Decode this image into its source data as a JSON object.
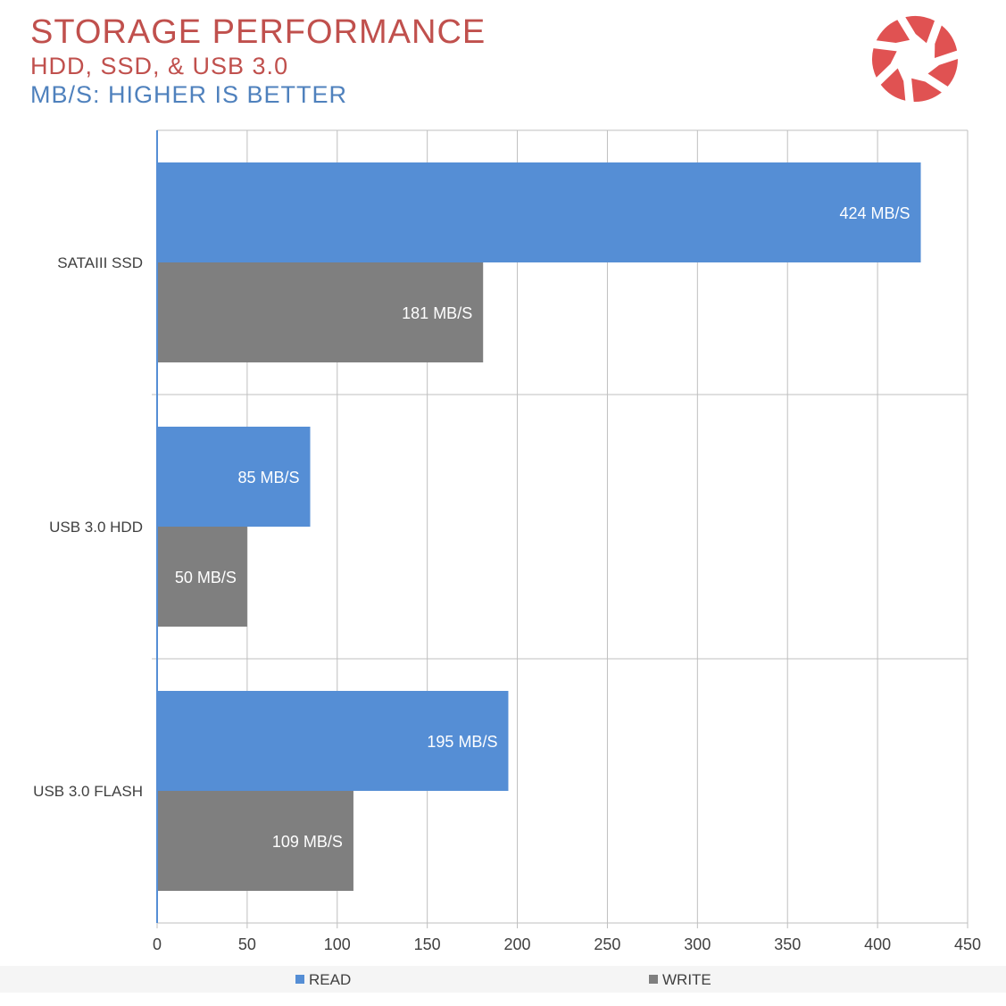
{
  "header": {
    "title": "STORAGE PERFORMANCE",
    "subtitle_line1": "HDD, SSD, & USB 3.0",
    "subtitle_line2": "MB/S: HIGHER IS BETTER"
  },
  "colors": {
    "title": "#c0504d",
    "subtitle_accent": "#4f81bd",
    "read": "#558ed5",
    "write": "#7f7f7f",
    "grid": "#bfbfbf",
    "axis": "#558ed5",
    "logo": "#e05252"
  },
  "logo": {
    "icon": "camera-aperture-logo"
  },
  "chart_data": {
    "type": "bar",
    "orientation": "horizontal",
    "categories": [
      "SATAIII SSD",
      "USB 3.0 HDD",
      "USB 3.0 FLASH"
    ],
    "series": [
      {
        "name": "READ",
        "values": [
          424,
          85,
          195
        ],
        "labels": [
          "424 MB/S",
          "85 MB/S",
          "195 MB/S"
        ]
      },
      {
        "name": "WRITE",
        "values": [
          181,
          50,
          109
        ],
        "labels": [
          "181 MB/S",
          "50 MB/S",
          "109 MB/S"
        ]
      }
    ],
    "x_ticks": [
      "0",
      "50",
      "100",
      "150",
      "200",
      "250",
      "300",
      "350",
      "400",
      "450"
    ],
    "xlim": [
      0,
      450
    ],
    "grid": true,
    "legend_position": "bottom"
  }
}
